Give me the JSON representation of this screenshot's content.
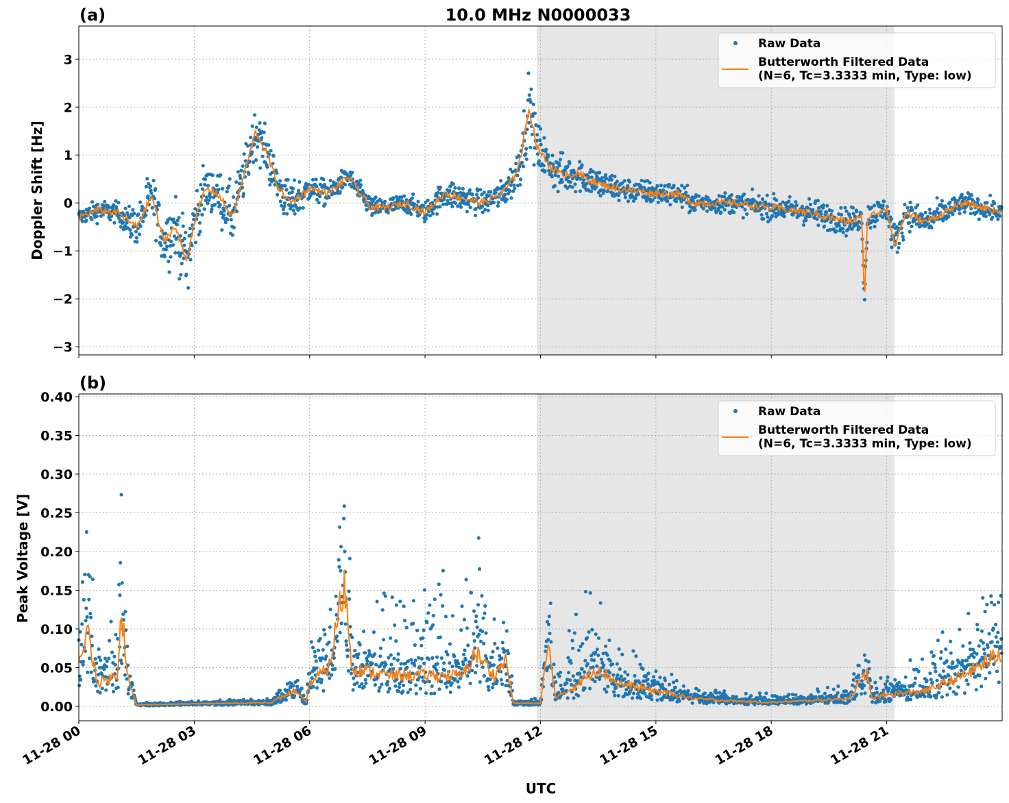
{
  "chart_data": [
    {
      "type": "scatter+line",
      "panel_label": "(a)",
      "title": "10.0 MHz N0000033",
      "xlabel": "",
      "ylabel": "Doppler Shift [Hz]",
      "xlim_hours": [
        0,
        24
      ],
      "ylim": [
        -3.17,
        3.69
      ],
      "yticks": [
        -3,
        -2,
        -1,
        0,
        1,
        2,
        3
      ],
      "ytick_labels": [
        "−3",
        "−2",
        "−1",
        "0",
        "1",
        "2",
        "3"
      ],
      "grid": true,
      "legend_position": "top-right",
      "shaded_region_hours": [
        11.9,
        21.2
      ],
      "series": [
        {
          "name": "Raw Data",
          "kind": "scatter",
          "color": "#1f77b4"
        },
        {
          "name": "Butterworth Filtered Data\n(N=6, Tc=3.3333 min, Type: low)",
          "kind": "line",
          "color": "#ff7f0e"
        }
      ],
      "filtered_points_hour_value_spread": [
        [
          0,
          -0.3,
          0.25
        ],
        [
          0.5,
          -0.15,
          0.3
        ],
        [
          1,
          -0.2,
          0.3
        ],
        [
          1.5,
          -0.5,
          0.6
        ],
        [
          1.9,
          0.15,
          0.7
        ],
        [
          2.2,
          -0.8,
          0.9
        ],
        [
          2.5,
          -0.5,
          0.9
        ],
        [
          2.8,
          -1.2,
          1.1
        ],
        [
          3.0,
          -0.4,
          0.9
        ],
        [
          3.3,
          0.3,
          0.7
        ],
        [
          3.6,
          0.2,
          0.7
        ],
        [
          4.0,
          -0.3,
          0.9
        ],
        [
          4.3,
          0.6,
          0.7
        ],
        [
          4.6,
          1.5,
          0.8
        ],
        [
          4.9,
          1.0,
          0.7
        ],
        [
          5.2,
          0.3,
          0.7
        ],
        [
          5.5,
          0.0,
          0.6
        ],
        [
          6.0,
          0.3,
          0.4
        ],
        [
          6.5,
          0.2,
          0.35
        ],
        [
          7.0,
          0.55,
          0.3
        ],
        [
          7.3,
          0.2,
          0.35
        ],
        [
          7.6,
          -0.1,
          0.3
        ],
        [
          8.0,
          -0.1,
          0.25
        ],
        [
          8.5,
          0.0,
          0.3
        ],
        [
          9.0,
          -0.2,
          0.3
        ],
        [
          9.5,
          0.2,
          0.4
        ],
        [
          10.0,
          0.1,
          0.4
        ],
        [
          10.5,
          0.0,
          0.35
        ],
        [
          11.0,
          0.2,
          0.4
        ],
        [
          11.3,
          0.5,
          0.6
        ],
        [
          11.5,
          1.0,
          0.8
        ],
        [
          11.7,
          2.0,
          1.0
        ],
        [
          11.9,
          1.2,
          0.8
        ],
        [
          12.2,
          0.8,
          0.6
        ],
        [
          12.5,
          0.6,
          0.6
        ],
        [
          13,
          0.6,
          0.5
        ],
        [
          13.5,
          0.4,
          0.5
        ],
        [
          14,
          0.3,
          0.4
        ],
        [
          14.5,
          0.25,
          0.35
        ],
        [
          15,
          0.2,
          0.35
        ],
        [
          15.5,
          0.2,
          0.35
        ],
        [
          16,
          0.0,
          0.3
        ],
        [
          17,
          0.0,
          0.3
        ],
        [
          18,
          -0.1,
          0.35
        ],
        [
          19,
          -0.2,
          0.4
        ],
        [
          20,
          -0.4,
          0.4
        ],
        [
          20.35,
          -0.3,
          0.4
        ],
        [
          20.42,
          -2.0,
          0.15
        ],
        [
          20.5,
          -0.3,
          0.4
        ],
        [
          21,
          -0.1,
          0.4
        ],
        [
          21.2,
          -0.9,
          0.6
        ],
        [
          21.5,
          -0.2,
          0.4
        ],
        [
          22,
          -0.4,
          0.45
        ],
        [
          23,
          0.0,
          0.3
        ],
        [
          24,
          -0.2,
          0.3
        ]
      ]
    },
    {
      "type": "scatter+line",
      "panel_label": "(b)",
      "xlabel": "UTC",
      "ylabel": "Peak Voltage [V]",
      "xlim_hours": [
        0,
        24
      ],
      "ylim": [
        -0.0186,
        0.4035
      ],
      "yticks": [
        0,
        0.05,
        0.1,
        0.15,
        0.2,
        0.25,
        0.3,
        0.35,
        0.4
      ],
      "ytick_labels": [
        "0.00",
        "0.05",
        "0.10",
        "0.15",
        "0.20",
        "0.25",
        "0.30",
        "0.35",
        "0.40"
      ],
      "xticks_hours": [
        0,
        3,
        6,
        9,
        12,
        15,
        18,
        21
      ],
      "xtick_labels": [
        "11-28 00",
        "11-28 03",
        "11-28 06",
        "11-28 09",
        "11-28 12",
        "11-28 15",
        "11-28 18",
        "11-28 21"
      ],
      "grid": true,
      "legend_position": "top-right",
      "shaded_region_hours": [
        11.9,
        21.2
      ],
      "series": [
        {
          "name": "Raw Data",
          "kind": "scatter",
          "color": "#1f77b4"
        },
        {
          "name": "Butterworth Filtered Data\n(N=6, Tc=3.3333 min, Type: low)",
          "kind": "line",
          "color": "#ff7f0e"
        }
      ],
      "filtered_points_hour_value_spread": [
        [
          0,
          0.05,
          0.08
        ],
        [
          0.2,
          0.1,
          0.13
        ],
        [
          0.5,
          0.03,
          0.07
        ],
        [
          1,
          0.04,
          0.06
        ],
        [
          1.1,
          0.13,
          0.13
        ],
        [
          1.3,
          0.03,
          0.03
        ],
        [
          1.5,
          0.002,
          0.002
        ],
        [
          5,
          0.005,
          0.005
        ],
        [
          5.6,
          0.02,
          0.03
        ],
        [
          5.9,
          0.005,
          0.01
        ],
        [
          6.0,
          0.03,
          0.07
        ],
        [
          6.5,
          0.05,
          0.09
        ],
        [
          6.9,
          0.16,
          0.22
        ],
        [
          7.1,
          0.05,
          0.08
        ],
        [
          8,
          0.04,
          0.12
        ],
        [
          9,
          0.04,
          0.13
        ],
        [
          10,
          0.04,
          0.12
        ],
        [
          10.3,
          0.07,
          0.16
        ],
        [
          10.8,
          0.04,
          0.1
        ],
        [
          11.1,
          0.06,
          0.12
        ],
        [
          11.3,
          0.004,
          0.004
        ],
        [
          12.0,
          0.004,
          0.004
        ],
        [
          12.2,
          0.08,
          0.07
        ],
        [
          12.4,
          0.01,
          0.03
        ],
        [
          13,
          0.03,
          0.14
        ],
        [
          13.5,
          0.05,
          0.11
        ],
        [
          14,
          0.03,
          0.05
        ],
        [
          15,
          0.02,
          0.03
        ],
        [
          16,
          0.01,
          0.02
        ],
        [
          17,
          0.007,
          0.01
        ],
        [
          18,
          0.005,
          0.01
        ],
        [
          20,
          0.01,
          0.015
        ],
        [
          20.5,
          0.045,
          0.025
        ],
        [
          20.6,
          0.01,
          0.02
        ],
        [
          21,
          0.015,
          0.02
        ],
        [
          22,
          0.02,
          0.05
        ],
        [
          23,
          0.04,
          0.08
        ],
        [
          24,
          0.07,
          0.11
        ]
      ]
    }
  ]
}
